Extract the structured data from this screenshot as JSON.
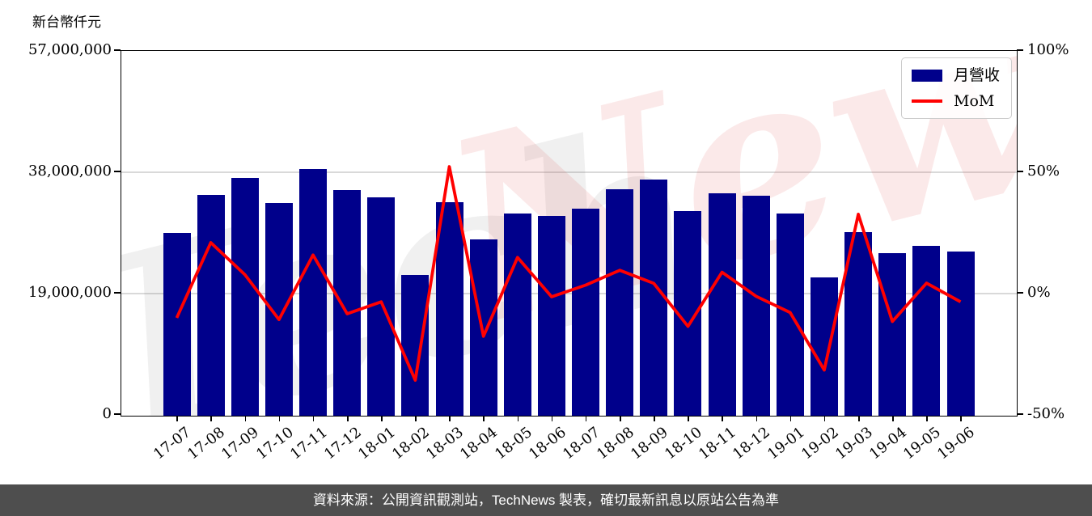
{
  "chart_data": {
    "type": "bar",
    "title": "",
    "categories": [
      "17-07",
      "17-08",
      "17-09",
      "17-10",
      "17-11",
      "17-12",
      "18-01",
      "18-02",
      "18-03",
      "18-04",
      "18-05",
      "18-06",
      "18-07",
      "18-08",
      "18-09",
      "18-10",
      "18-11",
      "18-12",
      "19-01",
      "19-02",
      "19-03",
      "19-04",
      "19-05",
      "19-06"
    ],
    "series": [
      {
        "name": "月營收",
        "type": "bar",
        "axis": "left",
        "color": "#00008B",
        "values": [
          28600000,
          34600000,
          37300000,
          33300000,
          38600000,
          35400000,
          34200000,
          22000000,
          33500000,
          27600000,
          31700000,
          31300000,
          32400000,
          35500000,
          37000000,
          32000000,
          34800000,
          34400000,
          31700000,
          21700000,
          28800000,
          25500000,
          26600000,
          25700000
        ]
      },
      {
        "name": "MoM",
        "type": "line",
        "axis": "right",
        "color": "#FF0000",
        "values": [
          -10.0,
          21.0,
          7.8,
          -10.7,
          15.9,
          -8.3,
          -3.4,
          -35.7,
          52.3,
          -17.6,
          14.9,
          -1.3,
          3.5,
          9.6,
          4.2,
          -13.5,
          8.8,
          -1.1,
          -7.8,
          -31.5,
          32.7,
          -11.5,
          4.3,
          -3.4
        ]
      }
    ],
    "left_axis": {
      "title": "新台幣仟元",
      "min": 0,
      "max": 57000000,
      "tick_values": [
        57000000,
        38000000,
        19000000,
        0
      ],
      "tick_labels": [
        "57,000,000",
        "38,000,000",
        "19,000,000",
        "0"
      ],
      "gridline_values": [
        38000000,
        19000000
      ]
    },
    "right_axis": {
      "min": -50,
      "max": 100,
      "tick_values": [
        100,
        50,
        0,
        -50
      ],
      "tick_labels": [
        "100%",
        "50%",
        "0%",
        "-50%"
      ]
    },
    "legend": {
      "position": "top-right",
      "items": [
        "月營收",
        "MoM"
      ]
    },
    "grid": true,
    "colors": {
      "bar": "#00008B",
      "line": "#FF0000",
      "gridline": "#d9d9d9",
      "footer_bg": "#4e4e4e"
    }
  },
  "watermark": {
    "gray_text": "Tech",
    "pink_text": "News"
  },
  "footer": {
    "text": "資料來源：公開資訊觀測站，TechNews 製表，確切最新訊息以原站公告為準"
  }
}
